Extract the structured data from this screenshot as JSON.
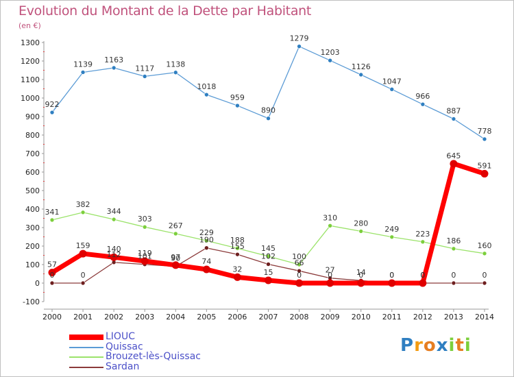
{
  "chart_data": {
    "type": "line",
    "title": "Evolution du Montant de la Dette par Habitant",
    "subtitle": "(en €)",
    "xlabel": "",
    "ylabel": "",
    "x": [
      "2000",
      "2001",
      "2002",
      "2003",
      "2004",
      "2005",
      "2006",
      "2007",
      "2008",
      "2009",
      "2010",
      "2011",
      "2012",
      "2013",
      "2014"
    ],
    "ylim": [
      -100,
      1300
    ],
    "yticks": [
      -100,
      0,
      100,
      200,
      300,
      400,
      500,
      600,
      700,
      800,
      900,
      1000,
      1100,
      1200,
      1300
    ],
    "grid": false,
    "legend_position": "bottom-left",
    "series": [
      {
        "name": "Quissac",
        "color": "#5b9bd5",
        "marker": "#2f7fc1",
        "values": [
          922,
          1139,
          1163,
          1117,
          1138,
          1018,
          959,
          890,
          1279,
          1203,
          1126,
          1047,
          966,
          887,
          778
        ],
        "labels": [
          "922",
          "1139",
          "1163",
          "1117",
          "1138",
          "1018",
          "959",
          "890",
          "1279",
          "1203",
          "1126",
          "1047",
          "966",
          "887",
          "778"
        ]
      },
      {
        "name": "Brouzet-lès-Quissac",
        "color": "#9be36a",
        "marker": "#7ccf3c",
        "values": [
          341,
          382,
          344,
          303,
          267,
          229,
          188,
          145,
          100,
          310,
          280,
          249,
          223,
          186,
          160
        ],
        "labels": [
          "341",
          "382",
          "344",
          "303",
          "267",
          "229",
          "188",
          "145",
          "100",
          "310",
          "280",
          "249",
          "223",
          "186",
          "160"
        ]
      },
      {
        "name": "Sardan",
        "color": "#8b3a3a",
        "marker": "#6e1f1f",
        "values": [
          0,
          0,
          112,
          101,
          90,
          190,
          155,
          102,
          66,
          27,
          14,
          0,
          0,
          0,
          0
        ],
        "labels": [
          "0",
          "0",
          "112",
          "101",
          "90",
          "190",
          "155",
          "102",
          "66",
          "27",
          "14",
          "0",
          "0",
          "0",
          "0"
        ]
      },
      {
        "name": "LIOUC",
        "color": "#ff0000",
        "marker": "#e00000",
        "values": [
          57,
          159,
          140,
          119,
          97,
          74,
          32,
          15,
          0,
          0,
          0,
          0,
          0,
          645,
          591
        ],
        "labels": [
          "57",
          "159",
          "140",
          "119",
          "97",
          "74",
          "32",
          "15",
          "0",
          "0",
          "0",
          "0",
          "0",
          "645",
          "591"
        ]
      }
    ]
  },
  "legend": {
    "items": [
      {
        "label": "LIOUC",
        "color": "#ff0000"
      },
      {
        "label": "Quissac",
        "color": "#5b9bd5"
      },
      {
        "label": "Brouzet-lès-Quissac",
        "color": "#9be36a"
      },
      {
        "label": "Sardan",
        "color": "#8b3a3a"
      }
    ]
  },
  "logo": {
    "letters": [
      "P",
      "r",
      "o",
      "x",
      "i",
      "t",
      "i"
    ],
    "colors": [
      "#2f7fc1",
      "#f39c12",
      "#e67e22",
      "#2f7fc1",
      "#7ccf3c",
      "#e67e22",
      "#7ccf3c"
    ]
  }
}
